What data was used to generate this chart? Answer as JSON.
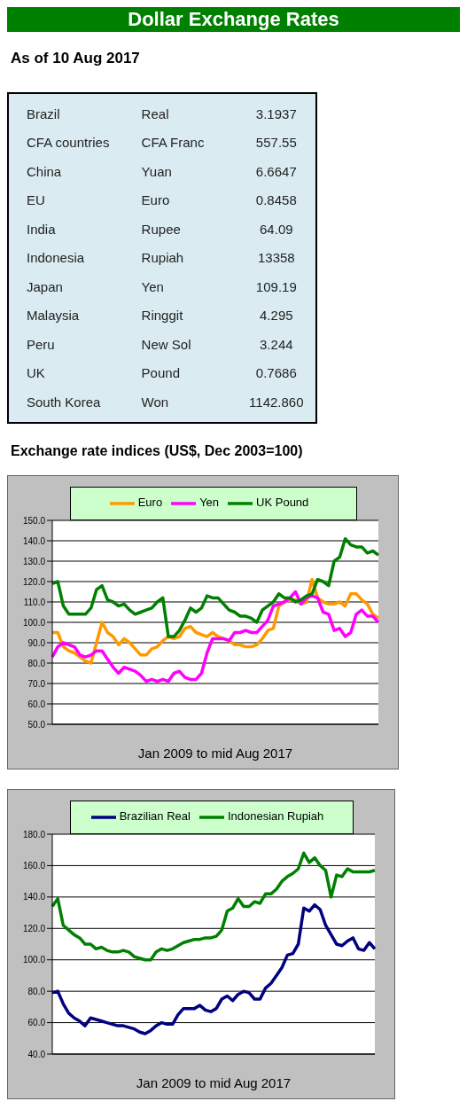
{
  "chart_data": [
    {
      "type": "other",
      "title": "Dollar Exchange Rates",
      "subtitle": "As of 10 Aug 2017",
      "categories": [
        "Brazil",
        "CFA countries",
        "China",
        "EU",
        "India",
        "Indonesia",
        "Japan",
        "Malaysia",
        "Peru",
        "UK",
        "South Korea"
      ],
      "y2_categories": [
        "Real",
        "CFA Franc",
        "Yuan",
        "Euro",
        "Rupee",
        "Rupiah",
        "Yen",
        "Ringgit",
        "New Sol",
        "Pound",
        "Won"
      ],
      "value_labels": [
        "3.1937",
        "557.55",
        "6.6647",
        "0.8458",
        "64.09",
        "13358",
        "109.19",
        "4.295",
        "3.244",
        "0.7686",
        "1142.860"
      ]
    },
    {
      "type": "line",
      "title": "Exchange rate indices (US$, Dec 2003=100)",
      "xlabel": "Jan 2009  to mid Aug 2017",
      "categories": [
        null,
        null,
        null,
        null,
        null,
        null,
        null,
        null,
        null,
        null,
        null,
        null,
        null,
        null,
        null,
        null,
        null,
        null,
        null,
        null,
        null,
        null,
        null,
        null,
        null,
        null,
        null,
        null,
        null,
        null,
        null,
        null,
        null,
        null,
        null,
        null,
        null,
        null,
        null,
        null,
        null,
        null,
        null,
        null,
        null,
        null,
        null,
        null,
        null,
        null,
        null,
        null,
        null,
        null,
        null,
        null,
        null,
        null,
        null,
        null
      ],
      "series": [
        {
          "name": "Euro",
          "color": "#ff9900",
          "values": [
            95,
            95,
            88,
            86,
            85,
            83,
            81,
            80,
            90,
            100,
            95,
            93,
            89,
            92,
            90,
            87,
            84,
            84,
            87,
            88,
            91,
            93,
            92,
            93,
            97,
            98,
            95,
            94,
            93,
            95,
            93,
            92,
            91,
            89,
            89,
            88,
            88,
            89,
            92,
            96,
            97,
            108,
            110,
            111,
            111,
            109,
            110,
            121,
            112,
            110,
            109,
            109,
            110,
            108,
            114,
            114,
            111,
            109,
            104,
            102
          ]
        },
        {
          "name": "Yen",
          "color": "#ff00ff",
          "values": [
            83,
            88,
            90,
            89,
            88,
            84,
            83,
            84,
            86,
            86,
            82,
            78,
            75,
            78,
            77,
            76,
            74,
            71,
            72,
            71,
            72,
            71,
            75,
            76,
            73,
            72,
            72,
            75,
            85,
            92,
            92,
            92,
            91,
            95,
            95,
            96,
            95,
            95,
            98,
            101,
            108,
            109,
            110,
            112,
            115,
            109,
            112,
            113,
            112,
            105,
            104,
            96,
            97,
            93,
            95,
            104,
            106,
            103,
            103,
            100
          ]
        },
        {
          "name": "UK Pound",
          "color": "#008000",
          "values": [
            119,
            120,
            108,
            104,
            104,
            104,
            104,
            107,
            116,
            118,
            111,
            110,
            108,
            109,
            106,
            104,
            105,
            106,
            107,
            110,
            112,
            93,
            93,
            96,
            101,
            107,
            105,
            107,
            113,
            112,
            112,
            109,
            106,
            105,
            103,
            103,
            102,
            100,
            106,
            108,
            110,
            114,
            112,
            112,
            110,
            111,
            113,
            114,
            121,
            120,
            118,
            130,
            132,
            141,
            138,
            137,
            137,
            134,
            135,
            133
          ]
        }
      ],
      "ylim": [
        50,
        150
      ],
      "yticks": [
        {
          "value": 50,
          "label": "50.0"
        },
        {
          "value": 60,
          "label": "60.0"
        },
        {
          "value": 70,
          "label": "70.0"
        },
        {
          "value": 80,
          "label": "80.0"
        },
        {
          "value": 90,
          "label": "90.0"
        },
        {
          "value": 100,
          "label": "100.0"
        },
        {
          "value": 110,
          "label": "110.0"
        },
        {
          "value": 120,
          "label": "120.0"
        },
        {
          "value": 130,
          "label": "130.0"
        },
        {
          "value": 140,
          "label": "140.0"
        },
        {
          "value": 150,
          "label": "150.0"
        }
      ],
      "grid": "y",
      "legend": "top",
      "tick_labels": "y",
      "marker": "none",
      "line_style": "solid"
    },
    {
      "type": "line",
      "xlabel": "Jan 2009 to mid Aug 2017",
      "categories": [
        null,
        null,
        null,
        null,
        null,
        null,
        null,
        null,
        null,
        null,
        null,
        null,
        null,
        null,
        null,
        null,
        null,
        null,
        null,
        null,
        null,
        null,
        null,
        null,
        null,
        null,
        null,
        null,
        null,
        null,
        null,
        null,
        null,
        null,
        null,
        null,
        null,
        null,
        null,
        null,
        null,
        null,
        null,
        null,
        null,
        null,
        null,
        null,
        null,
        null,
        null,
        null,
        null,
        null,
        null,
        null,
        null,
        null,
        null,
        null
      ],
      "series": [
        {
          "name": "Brazilian Real",
          "color": "#000080",
          "values": [
            79,
            80,
            72,
            66,
            63,
            61,
            58,
            63,
            62,
            61,
            60,
            59,
            58,
            58,
            57,
            56,
            54,
            53,
            55,
            58,
            60,
            59,
            59,
            65,
            69,
            69,
            69,
            71,
            68,
            67,
            69,
            75,
            77,
            74,
            78,
            80,
            79,
            75,
            75,
            82,
            85,
            90,
            95,
            103,
            104,
            110,
            133,
            131,
            135,
            132,
            122,
            116,
            110,
            109,
            112,
            114,
            107,
            106,
            111,
            107
          ]
        },
        {
          "name": "Indonesian Rupiah",
          "color": "#008000",
          "values": [
            134,
            139,
            122,
            119,
            116,
            114,
            110,
            110,
            107,
            108,
            106,
            105,
            105,
            106,
            105,
            102,
            101,
            100,
            100,
            105,
            107,
            106,
            107,
            109,
            111,
            112,
            113,
            113,
            114,
            114,
            115,
            119,
            131,
            133,
            139,
            134,
            134,
            137,
            136,
            142,
            142,
            145,
            150,
            153,
            155,
            158,
            168,
            162,
            165,
            160,
            157,
            140,
            154,
            153,
            158,
            156,
            156,
            156,
            156,
            157
          ]
        }
      ],
      "ylim": [
        40,
        180
      ],
      "yticks": [
        {
          "value": 40,
          "label": "40.0"
        },
        {
          "value": 60,
          "label": "60.0"
        },
        {
          "value": 80,
          "label": "80.0"
        },
        {
          "value": 100,
          "label": "100.0"
        },
        {
          "value": 120,
          "label": "120.0"
        },
        {
          "value": 140,
          "label": "140.0"
        },
        {
          "value": 160,
          "label": "160.0"
        },
        {
          "value": 180,
          "label": "180.0"
        }
      ],
      "grid": "y",
      "legend": "top",
      "tick_labels": "y",
      "marker": "none",
      "line_style": "solid"
    }
  ]
}
